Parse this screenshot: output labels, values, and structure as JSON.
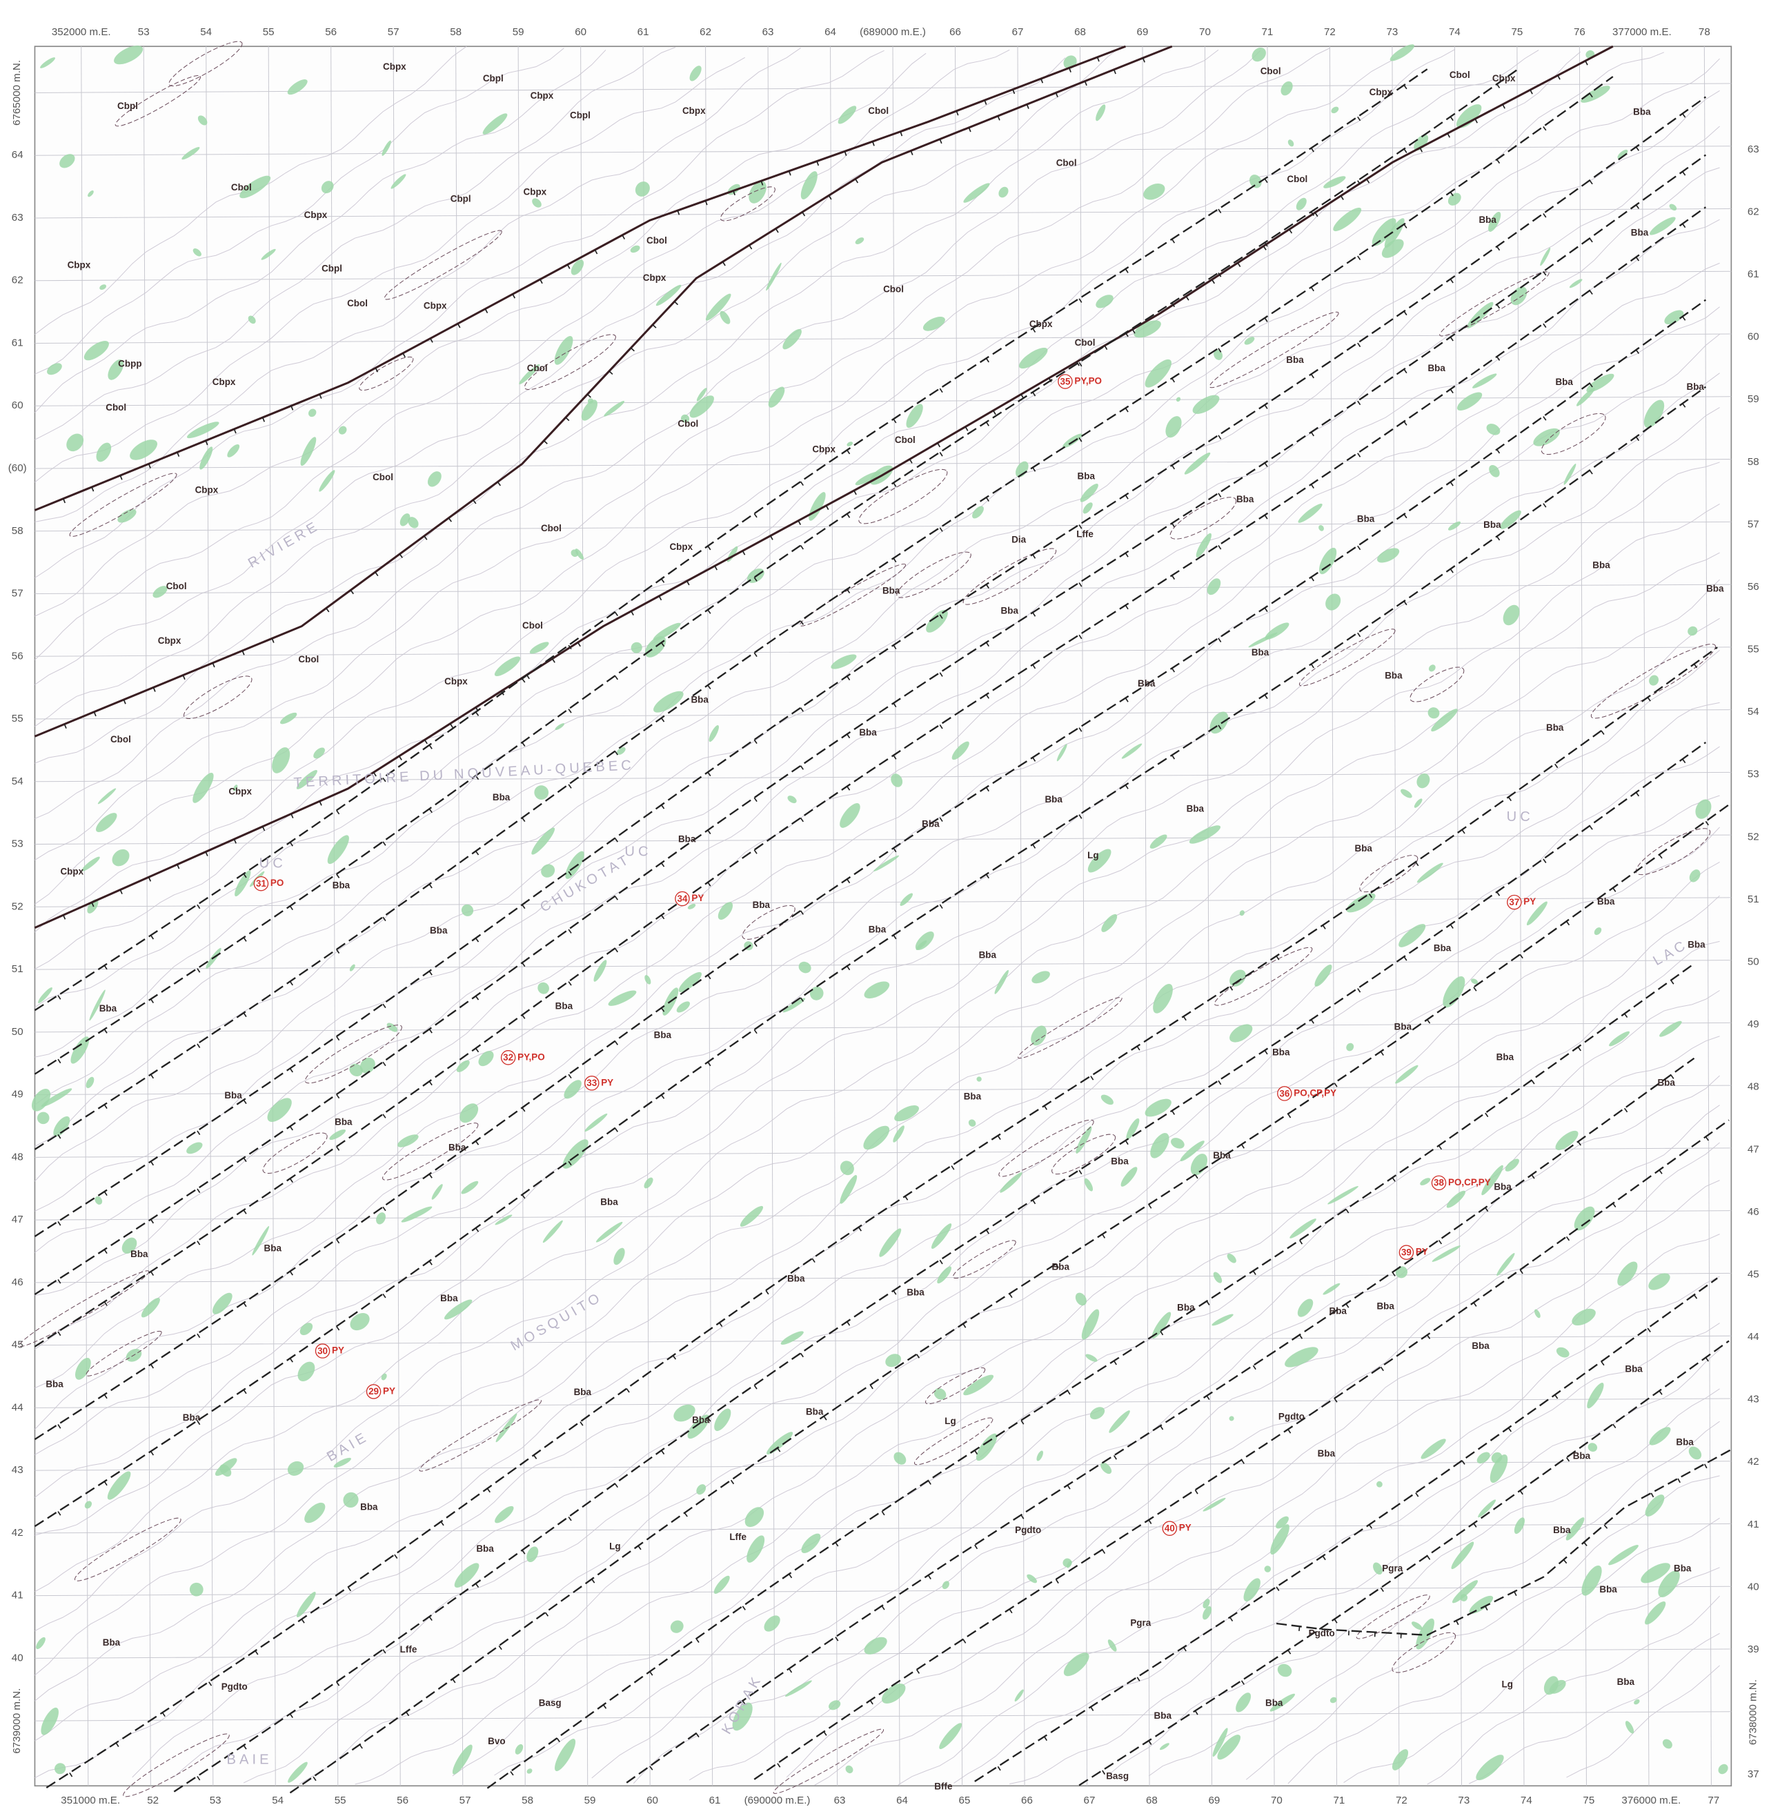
{
  "top_labels": [
    "352000 m.E.",
    "53",
    "54",
    "55",
    "56",
    "57",
    "58",
    "59",
    "60",
    "61",
    "62",
    "63",
    "64",
    "(689000 m.E.)",
    "66",
    "67",
    "68",
    "69",
    "70",
    "71",
    "72",
    "73",
    "74",
    "75",
    "76",
    "377000 m.E.",
    "78"
  ],
  "bottom_labels": [
    "351000 m.E.",
    "52",
    "53",
    "54",
    "55",
    "56",
    "57",
    "58",
    "59",
    "60",
    "61",
    "(690000 m.E.)",
    "63",
    "64",
    "65",
    "66",
    "67",
    "68",
    "69",
    "70",
    "71",
    "72",
    "73",
    "74",
    "75",
    "376000 m.E.",
    "77"
  ],
  "left_labels": [
    "6765000 m.N.",
    "64",
    "63",
    "62",
    "61",
    "60",
    "(60)",
    "58",
    "57",
    "56",
    "55",
    "54",
    "53",
    "52",
    "51",
    "50",
    "49",
    "48",
    "47",
    "46",
    "45",
    "44",
    "43",
    "42",
    "41",
    "40",
    "6739000 m.N."
  ],
  "right_labels": [
    "63",
    "62",
    "61",
    "60",
    "59",
    "58",
    "57",
    "56",
    "55",
    "54",
    "53",
    "52",
    "51",
    "50",
    "49",
    "48",
    "47",
    "46",
    "45",
    "44",
    "43",
    "42",
    "41",
    "40",
    "39",
    "6738000 m.N.",
    "37"
  ],
  "map_units": [
    "Cbpx",
    "Cbpl",
    "Cbpx",
    "Cbpl",
    "Cbpx",
    "Cbol",
    "Cbol",
    "Cbpx",
    "Cbol",
    "Cbpx",
    "Bba",
    "Cbpl",
    "Cbol",
    "Cbpx",
    "Cbpl",
    "Cbpx",
    "Cbpx",
    "Cbpl",
    "Cbol",
    "Cbpx",
    "Cbol",
    "Cbol",
    "Cbol",
    "Bba",
    "Bba",
    "Cbol",
    "Cbpx",
    "Cbpp",
    "Cbol",
    "Cbpx",
    "Cbol",
    "Cbol",
    "Cbpx",
    "Cbol",
    "Cbpx",
    "Cbol",
    "Bba",
    "Bba",
    "Bba",
    "Bba",
    "Cbpx",
    "Cbol",
    "Bba",
    "Bba",
    "Bba",
    "Bba",
    "Bba",
    "Cbol",
    "Cbpx",
    "Cbol",
    "Bba",
    "Bba",
    "Bba",
    "Cbpx",
    "Cbol",
    "Cbol",
    "Cbpx",
    "Bba",
    "Bba",
    "Bba",
    "Bba",
    "Cbol",
    "Bba",
    "Bba",
    "Cbpx",
    "Bba",
    "Bba",
    "Bba",
    "Bba",
    "Bba",
    "Cbpx",
    "Bba",
    "Bba",
    "Bba",
    "Bba",
    "Bba",
    "Bba",
    "Bba",
    "Bba",
    "Bba",
    "Bba",
    "Bba",
    "Bba",
    "Bba",
    "Bba",
    "Bba",
    "Bba",
    "Bba",
    "Bba",
    "Bba",
    "Bba",
    "Bba",
    "Bba",
    "Bba",
    "Bba",
    "Bba",
    "Bba",
    "Bba",
    "Bba",
    "Bba",
    "Bba",
    "Bba",
    "Bba",
    "Bba",
    "Bba",
    "Bba",
    "Bba",
    "Bba",
    "Bba",
    "Bba",
    "Bba",
    "Lg",
    "Pgdto",
    "Bba",
    "Bba",
    "Bba",
    "Bba",
    "Bba",
    "Lg",
    "Lffe",
    "Pgdto",
    "Pgra",
    "Bba",
    "Bba",
    "Bba",
    "Bba",
    "Lffe",
    "Pgdto",
    "Pgra",
    "Pgdto",
    "Lg",
    "Bba",
    "Bba",
    "Bba",
    "Basg",
    "Basg",
    "Bffe",
    "Bvo",
    "Dia",
    "Lffe",
    "Lg"
  ],
  "occurrences": [
    {
      "number": "29",
      "minerals": "PY"
    },
    {
      "number": "30",
      "minerals": "PY"
    },
    {
      "number": "31",
      "minerals": "PO"
    },
    {
      "number": "32",
      "minerals": "PY,PO"
    },
    {
      "number": "33",
      "minerals": "PY"
    },
    {
      "number": "34",
      "minerals": "PY"
    },
    {
      "number": "35",
      "minerals": "PY,PO"
    },
    {
      "number": "36",
      "minerals": "PO,CP,PY"
    },
    {
      "number": "37",
      "minerals": "PY"
    },
    {
      "number": "38",
      "minerals": "PO,CP,PY"
    },
    {
      "number": "39",
      "minerals": "PY"
    },
    {
      "number": "40",
      "minerals": "PY"
    }
  ],
  "place_names": [
    "TERRITOIRE DU NOUVEAU-QUEBEC",
    "MOSQUITO",
    "BAIE",
    "CHUKOTAT",
    "RIVIERE",
    "UC",
    "UC",
    "UC",
    "LAC",
    "KORAK",
    "BAIE"
  ]
}
